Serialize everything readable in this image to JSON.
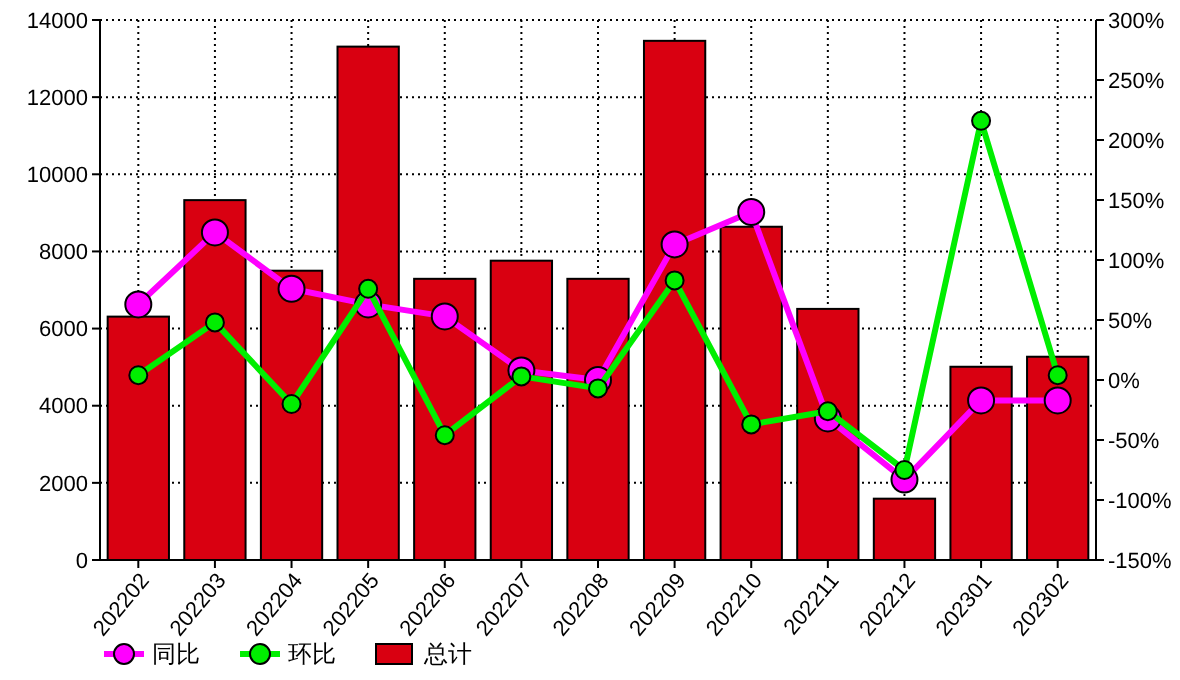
{
  "chart_data": {
    "type": "bar",
    "categories": [
      "202202",
      "202203",
      "202204",
      "202205",
      "202206",
      "202207",
      "202208",
      "202209",
      "202210",
      "202211",
      "202212",
      "202301",
      "202302"
    ],
    "series": [
      {
        "name": "同比",
        "type": "line",
        "axis": "y2",
        "color": "#ff00ff",
        "values": [
          63,
          123,
          76,
          63,
          53,
          8,
          0,
          113,
          140,
          -32,
          -83,
          -17,
          -17
        ]
      },
      {
        "name": "环比",
        "type": "line",
        "axis": "y2",
        "color": "#00ee00",
        "values": [
          4,
          48,
          -20,
          76,
          -46,
          3,
          -7,
          83,
          -37,
          -26,
          -75,
          216,
          4
        ]
      },
      {
        "name": "总计",
        "color": "#d90011",
        "values": [
          6310,
          9330,
          7500,
          13310,
          7290,
          7760,
          7290,
          13460,
          8640,
          6510,
          1590,
          5010,
          5270
        ]
      }
    ],
    "ylim": [
      0,
      14000
    ],
    "yticks": [
      0,
      2000,
      4000,
      6000,
      8000,
      10000,
      12000,
      14000
    ],
    "y2lim": [
      -150,
      300
    ],
    "y2ticks": [
      {
        "value": -150,
        "label": "-150%"
      },
      {
        "value": -100,
        "label": "-100%"
      },
      {
        "value": -50,
        "label": "-50%"
      },
      {
        "value": 0,
        "label": "0%"
      },
      {
        "value": 50,
        "label": "50%"
      },
      {
        "value": 100,
        "label": "100%"
      },
      {
        "value": 150,
        "label": "150%"
      },
      {
        "value": 200,
        "label": "200%"
      },
      {
        "value": 250,
        "label": "250%"
      },
      {
        "value": 300,
        "label": "300%"
      }
    ],
    "grid": true,
    "legend": "bottom",
    "marker": "circle",
    "line_style": "solid"
  }
}
